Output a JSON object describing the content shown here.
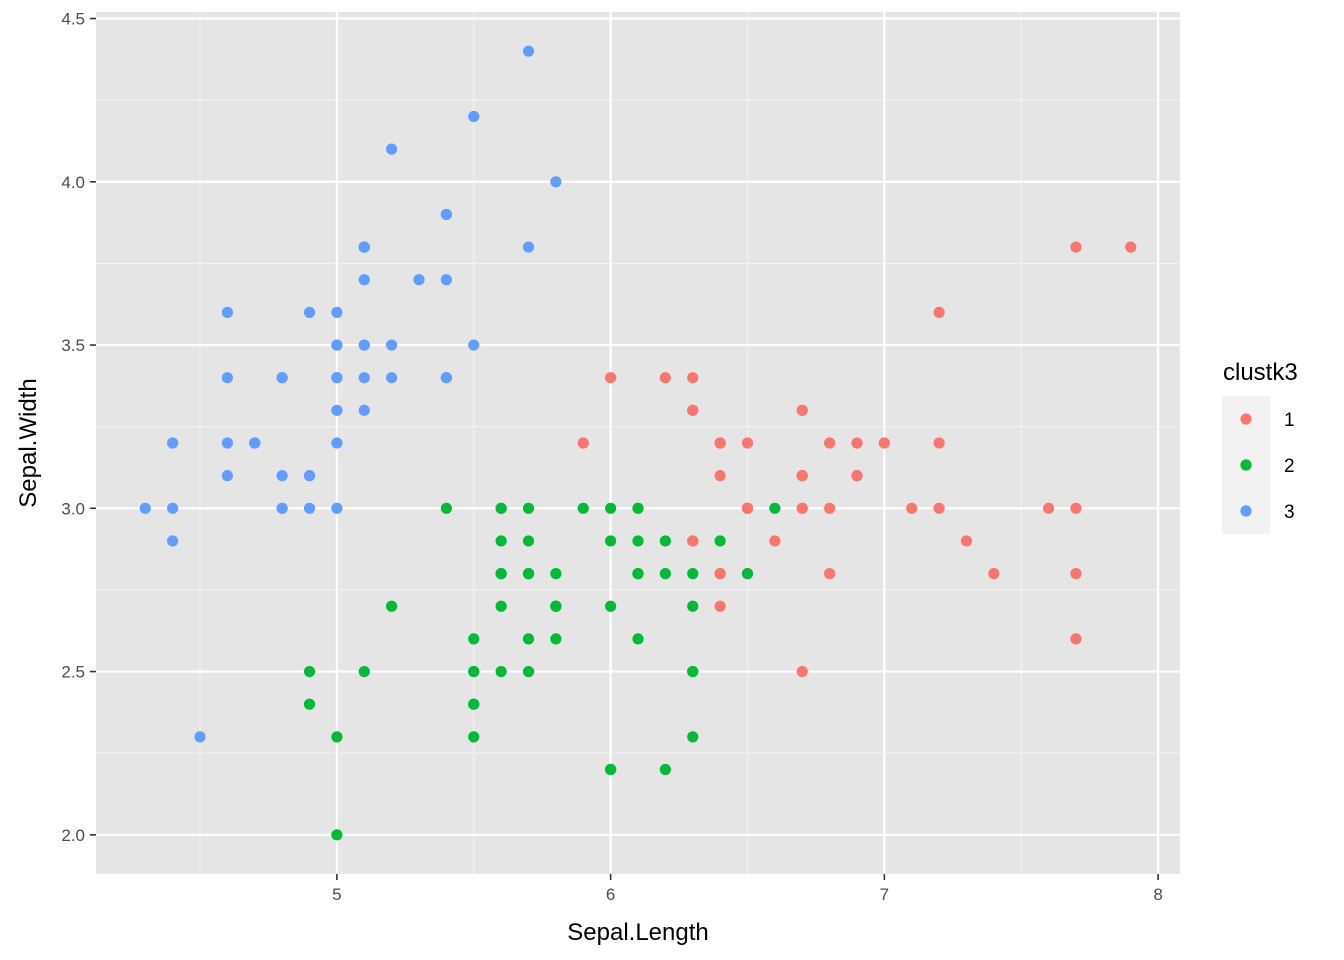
{
  "chart_data": {
    "type": "scatter",
    "title": "",
    "xlabel": "Sepal.Length",
    "ylabel": "Sepal.Width",
    "xlim": [
      4.12,
      8.08
    ],
    "ylim": [
      1.88,
      4.52
    ],
    "x_ticks": [
      5,
      6,
      7,
      8
    ],
    "x_tick_labels": [
      "5",
      "6",
      "7",
      "8"
    ],
    "y_ticks": [
      2.0,
      2.5,
      3.0,
      3.5,
      4.0,
      4.5
    ],
    "y_tick_labels": [
      "2.0",
      "2.5",
      "3.0",
      "3.5",
      "4.0",
      "4.5"
    ],
    "grid": true,
    "panel_background": "#E5E5E5",
    "legend": {
      "title": "clustk3",
      "position": "right"
    },
    "series": [
      {
        "name": "1",
        "color": "#F8766D",
        "points": [
          [
            7.0,
            3.2
          ],
          [
            6.4,
            3.2
          ],
          [
            6.9,
            3.1
          ],
          [
            6.5,
            2.8
          ],
          [
            6.3,
            3.3
          ],
          [
            6.6,
            2.9
          ],
          [
            6.7,
            3.1
          ],
          [
            6.2,
            3.4
          ],
          [
            5.9,
            3.2
          ],
          [
            6.1,
            3.0
          ],
          [
            6.3,
            2.9
          ],
          [
            6.4,
            2.8
          ],
          [
            6.8,
            2.8
          ],
          [
            6.7,
            3.0
          ],
          [
            6.0,
            3.4
          ],
          [
            6.7,
            3.1
          ],
          [
            6.3,
            3.3
          ],
          [
            7.1,
            3.0
          ],
          [
            6.5,
            3.0
          ],
          [
            7.6,
            3.0
          ],
          [
            7.3,
            2.9
          ],
          [
            6.7,
            2.5
          ],
          [
            7.2,
            3.6
          ],
          [
            6.5,
            3.2
          ],
          [
            6.4,
            2.7
          ],
          [
            6.8,
            3.0
          ],
          [
            6.4,
            3.2
          ],
          [
            6.5,
            3.0
          ],
          [
            7.7,
            3.8
          ],
          [
            7.7,
            2.6
          ],
          [
            6.9,
            3.2
          ],
          [
            7.7,
            2.8
          ],
          [
            6.7,
            3.3
          ],
          [
            7.2,
            3.2
          ],
          [
            7.2,
            3.0
          ],
          [
            7.4,
            2.8
          ],
          [
            7.9,
            3.8
          ],
          [
            6.4,
            2.8
          ],
          [
            6.3,
            3.4
          ],
          [
            6.4,
            3.1
          ],
          [
            6.9,
            3.1
          ],
          [
            6.7,
            3.1
          ],
          [
            6.9,
            3.1
          ],
          [
            6.8,
            3.2
          ],
          [
            6.7,
            3.3
          ],
          [
            6.7,
            3.0
          ],
          [
            6.5,
            3.0
          ],
          [
            7.7,
            3.0
          ],
          [
            6.3,
            2.9
          ]
        ]
      },
      {
        "name": "2",
        "color": "#00BA38",
        "points": [
          [
            5.5,
            2.3
          ],
          [
            5.7,
            2.8
          ],
          [
            4.9,
            2.4
          ],
          [
            5.2,
            2.7
          ],
          [
            5.0,
            2.0
          ],
          [
            5.9,
            3.0
          ],
          [
            6.0,
            2.2
          ],
          [
            6.1,
            2.9
          ],
          [
            5.6,
            2.9
          ],
          [
            5.6,
            3.0
          ],
          [
            5.8,
            2.7
          ],
          [
            6.2,
            2.2
          ],
          [
            5.6,
            2.5
          ],
          [
            6.1,
            2.8
          ],
          [
            6.3,
            2.5
          ],
          [
            6.6,
            3.0
          ],
          [
            6.0,
            2.9
          ],
          [
            5.7,
            2.6
          ],
          [
            5.5,
            2.4
          ],
          [
            5.5,
            2.4
          ],
          [
            5.8,
            2.7
          ],
          [
            6.0,
            2.7
          ],
          [
            5.4,
            3.0
          ],
          [
            6.3,
            2.3
          ],
          [
            5.6,
            3.0
          ],
          [
            5.5,
            2.5
          ],
          [
            5.5,
            2.6
          ],
          [
            6.1,
            3.0
          ],
          [
            5.8,
            2.6
          ],
          [
            5.0,
            2.3
          ],
          [
            5.6,
            2.7
          ],
          [
            5.7,
            3.0
          ],
          [
            5.7,
            2.9
          ],
          [
            6.2,
            2.9
          ],
          [
            5.1,
            2.5
          ],
          [
            5.7,
            2.8
          ],
          [
            4.9,
            2.5
          ],
          [
            5.7,
            2.5
          ],
          [
            5.8,
            2.8
          ],
          [
            6.0,
            2.2
          ],
          [
            5.6,
            2.8
          ],
          [
            6.3,
            2.7
          ],
          [
            6.1,
            2.6
          ],
          [
            6.0,
            3.0
          ],
          [
            5.8,
            2.7
          ],
          [
            6.3,
            2.5
          ],
          [
            6.5,
            2.8
          ],
          [
            6.4,
            2.9
          ],
          [
            6.1,
            2.8
          ],
          [
            6.2,
            2.8
          ],
          [
            5.6,
            2.8
          ],
          [
            5.5,
            2.5
          ],
          [
            6.3,
            2.8
          ]
        ]
      },
      {
        "name": "3",
        "color": "#619CFF",
        "points": [
          [
            5.1,
            3.5
          ],
          [
            4.9,
            3.0
          ],
          [
            4.7,
            3.2
          ],
          [
            4.6,
            3.1
          ],
          [
            5.0,
            3.6
          ],
          [
            5.4,
            3.9
          ],
          [
            4.6,
            3.4
          ],
          [
            5.0,
            3.4
          ],
          [
            4.4,
            2.9
          ],
          [
            4.9,
            3.1
          ],
          [
            5.4,
            3.7
          ],
          [
            4.8,
            3.4
          ],
          [
            4.8,
            3.0
          ],
          [
            4.3,
            3.0
          ],
          [
            5.8,
            4.0
          ],
          [
            5.7,
            4.4
          ],
          [
            5.4,
            3.9
          ],
          [
            5.1,
            3.5
          ],
          [
            5.7,
            3.8
          ],
          [
            5.1,
            3.8
          ],
          [
            5.4,
            3.4
          ],
          [
            5.1,
            3.7
          ],
          [
            4.6,
            3.6
          ],
          [
            5.1,
            3.3
          ],
          [
            4.8,
            3.4
          ],
          [
            5.0,
            3.0
          ],
          [
            5.0,
            3.4
          ],
          [
            5.2,
            3.5
          ],
          [
            5.2,
            3.4
          ],
          [
            4.7,
            3.2
          ],
          [
            4.8,
            3.1
          ],
          [
            5.4,
            3.4
          ],
          [
            5.2,
            4.1
          ],
          [
            5.5,
            4.2
          ],
          [
            4.9,
            3.1
          ],
          [
            5.0,
            3.2
          ],
          [
            5.5,
            3.5
          ],
          [
            4.9,
            3.6
          ],
          [
            4.4,
            3.0
          ],
          [
            5.1,
            3.4
          ],
          [
            5.0,
            3.5
          ],
          [
            4.5,
            2.3
          ],
          [
            4.4,
            3.2
          ],
          [
            5.0,
            3.5
          ],
          [
            5.1,
            3.8
          ],
          [
            4.8,
            3.0
          ],
          [
            5.1,
            3.8
          ],
          [
            4.6,
            3.2
          ],
          [
            5.3,
            3.7
          ],
          [
            5.0,
            3.3
          ]
        ]
      }
    ]
  }
}
